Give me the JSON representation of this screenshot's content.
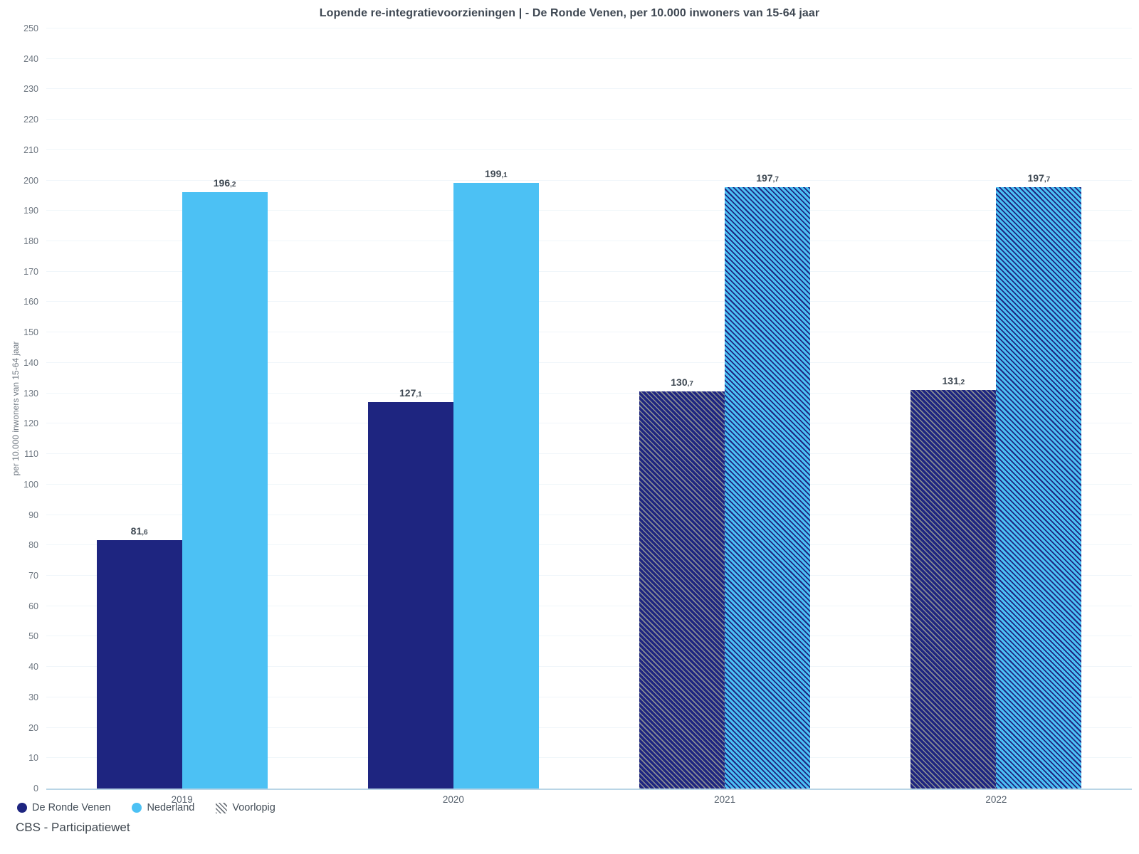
{
  "title": "Lopende re-integratievoorzieningen | - De Ronde Venen, per 10.000 inwoners van 15-64 jaar",
  "source": "CBS - Participatiewet",
  "y_axis": {
    "label": "per 10.000 inwoners van 15-64 jaar",
    "min": 0,
    "max": 250,
    "tick_step": 10
  },
  "legend": [
    {
      "label": "De Ronde Venen",
      "type": "circle",
      "color": "#1e2580"
    },
    {
      "label": "Nederland",
      "type": "circle",
      "color": "#4cc1f4"
    },
    {
      "label": "Voorlopig",
      "type": "hatch",
      "color": "#6f757c"
    }
  ],
  "colors": {
    "navy": "#1e2580",
    "light_blue": "#4cc1f4",
    "axis_line": "#b9d5e6",
    "gridline": "#f0f6fa",
    "text_dark": "#3e4752",
    "text_gray": "#6e7781"
  },
  "chart_data": {
    "type": "bar",
    "title": "Lopende re-integratievoorzieningen | - De Ronde Venen, per 10.000 inwoners van 15-64 jaar",
    "xlabel": "",
    "ylabel": "per 10.000 inwoners van 15-64 jaar",
    "ylim": [
      0,
      250
    ],
    "grid": true,
    "legend_position": "bottom-left",
    "categories": [
      "2019",
      "2020",
      "2021",
      "2022"
    ],
    "provisional_categories": [
      "2021",
      "2022"
    ],
    "series": [
      {
        "name": "De Ronde Venen",
        "color": "#1e2580",
        "values": [
          81.6,
          127.1,
          130.7,
          131.2
        ],
        "labels": [
          "81,6",
          "127,1",
          "130,7",
          "131,2"
        ]
      },
      {
        "name": "Nederland",
        "color": "#4cc1f4",
        "values": [
          196.2,
          199.1,
          197.7,
          197.7
        ],
        "labels": [
          "196,2",
          "199,1",
          "197,7",
          "197,7"
        ]
      }
    ]
  }
}
